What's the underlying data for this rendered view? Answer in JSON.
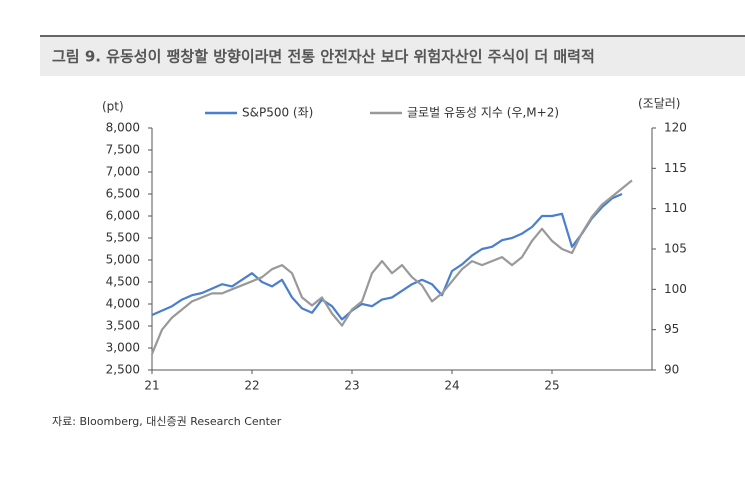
{
  "chart_data": {
    "type": "line",
    "title": "그림 9. 유동성이 팽창할 방향이라면 전통 안전자산 보다 위험자산인 주식이 더 매력적",
    "y_label": "(pt)",
    "y2_label": "(조달러)",
    "source": "자료: Bloomberg, 대신증권 Research Center",
    "x": [
      21.0,
      21.1,
      21.2,
      21.3,
      21.4,
      21.5,
      21.6,
      21.7,
      21.8,
      21.9,
      22.0,
      22.1,
      22.2,
      22.3,
      22.4,
      22.5,
      22.6,
      22.7,
      22.8,
      22.9,
      23.0,
      23.1,
      23.2,
      23.3,
      23.4,
      23.5,
      23.6,
      23.7,
      23.8,
      23.9,
      24.0,
      24.1,
      24.2,
      24.3,
      24.4,
      24.5,
      24.6,
      24.7,
      24.8,
      24.9,
      25.0,
      25.1,
      25.2,
      25.3,
      25.4,
      25.5,
      25.6,
      25.7,
      25.8
    ],
    "series": [
      {
        "name": "S&P500 (좌)",
        "color": "#4a7fcf",
        "values": [
          3750,
          3850,
          3950,
          4100,
          4200,
          4250,
          4350,
          4450,
          4400,
          4550,
          4700,
          4500,
          4400,
          4550,
          4150,
          3900,
          3800,
          4100,
          3950,
          3650,
          3850,
          4000,
          3950,
          4100,
          4150,
          4300,
          4450,
          4550,
          4450,
          4200,
          4750,
          4900,
          5100,
          5250,
          5300,
          5450,
          5500,
          5600,
          5750,
          6000,
          6000,
          6050,
          5300,
          5600,
          5950,
          6200,
          6400,
          6500,
          null
        ]
      },
      {
        "name": "글로벌 유동성 지수 (우,M+2)",
        "color": "#999999",
        "axis": "y2",
        "values": [
          92,
          95,
          96.5,
          97.5,
          98.5,
          99,
          99.5,
          99.5,
          100,
          100.5,
          101,
          101.5,
          102.5,
          103,
          102,
          99,
          98,
          99,
          97,
          95.5,
          97.5,
          98.5,
          102,
          103.5,
          102,
          103,
          101.5,
          100.5,
          98.5,
          99.5,
          101,
          102.5,
          103.5,
          103,
          103.5,
          104,
          103,
          104,
          106,
          107.5,
          106,
          105,
          104.5,
          107,
          109,
          110.5,
          111.5,
          112.5,
          113.5
        ]
      }
    ],
    "xlim": [
      21,
      26
    ],
    "xticks": [
      21,
      22,
      23,
      24,
      25
    ],
    "ylim": [
      2500,
      8000
    ],
    "yticks": [
      {
        "value": 2500,
        "label": "2,500"
      },
      {
        "value": 3000,
        "label": "3,000"
      },
      {
        "value": 3500,
        "label": "3,500"
      },
      {
        "value": 4000,
        "label": "4,000"
      },
      {
        "value": 4500,
        "label": "4,500"
      },
      {
        "value": 5000,
        "label": "5,000"
      },
      {
        "value": 5500,
        "label": "5,500"
      },
      {
        "value": 6000,
        "label": "6,000"
      },
      {
        "value": 6500,
        "label": "6,500"
      },
      {
        "value": 7000,
        "label": "7,000"
      },
      {
        "value": 7500,
        "label": "7,500"
      },
      {
        "value": 8000,
        "label": "8,000"
      }
    ],
    "y2lim": [
      90,
      120
    ],
    "y2ticks": [
      90,
      95,
      100,
      105,
      110,
      115,
      120
    ]
  }
}
